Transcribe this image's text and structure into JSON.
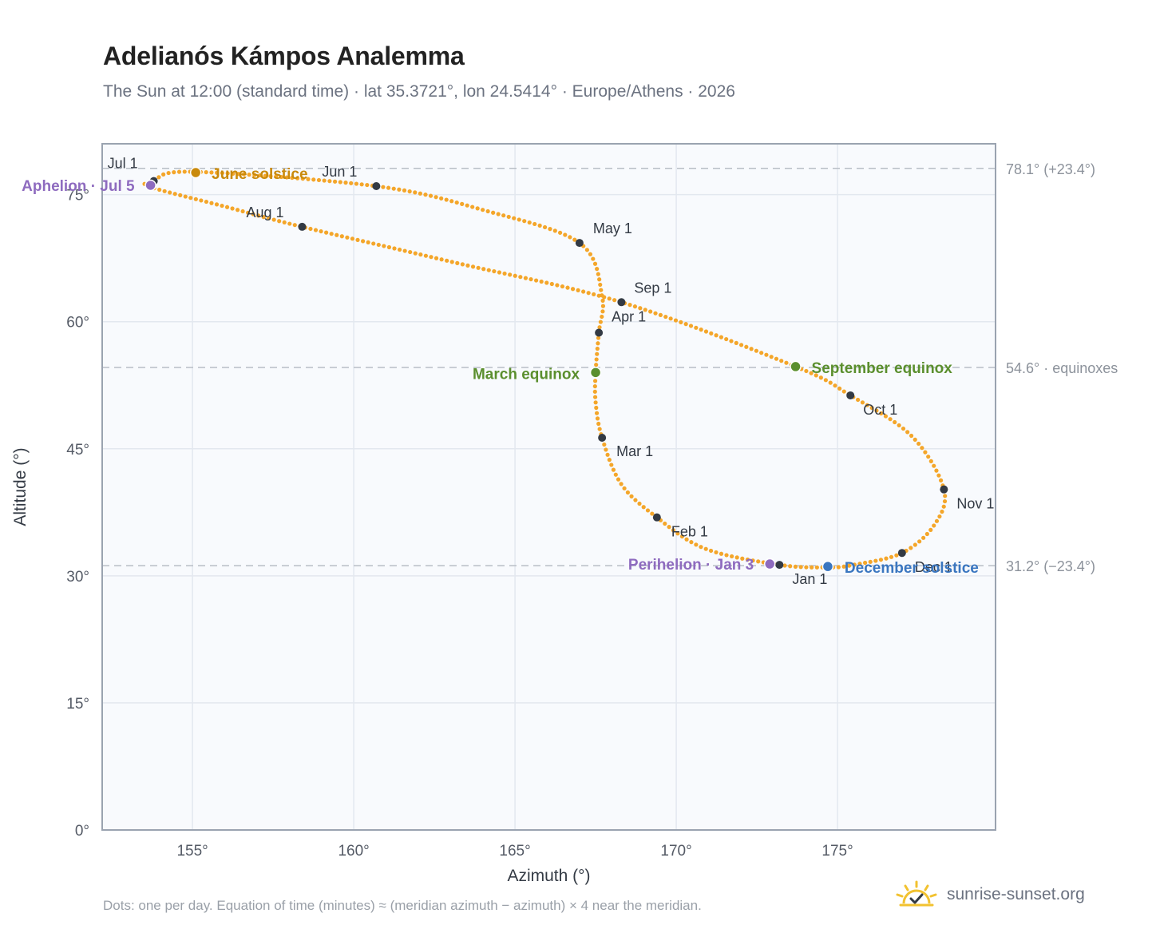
{
  "header": {
    "title": "Adelianós Kámpos Analemma",
    "subtitle": "The Sun at 12:00 (standard time) · lat 35.3721°, lon 24.5414° · Europe/Athens · 2026"
  },
  "footer": {
    "note": "Dots: one per day. Equation of time (minutes) ≈ (meridian azimuth − azimuth) × 4 near the meridian.",
    "brand": "sunrise-sunset.org",
    "brand_icon": "sun-check-icon"
  },
  "colors": {
    "curve": "#f4a62a",
    "month_marker": "#333a44",
    "june_solstice": "#c98a0c",
    "equinox": "#5b8f2e",
    "december_solstice": "#3a76c0",
    "perihelion_aphelion": "#8e6bbf",
    "plot_background": "#f8fafd",
    "reference_line": "#b8bec6"
  },
  "chart_data": {
    "type": "scatter",
    "xlabel": "Azimuth (°)",
    "ylabel": "Altitude (°)",
    "xlim": [
      152.2,
      179.9
    ],
    "ylim": [
      0,
      81
    ],
    "x_ticks": [
      155,
      160,
      165,
      170,
      175
    ],
    "x_tick_labels": [
      "155°",
      "160°",
      "165°",
      "170°",
      "175°"
    ],
    "y_ticks": [
      0,
      15,
      30,
      45,
      60,
      75
    ],
    "y_tick_labels": [
      "0°",
      "15°",
      "30°",
      "45°",
      "60°",
      "75°"
    ],
    "grid": true,
    "series": [
      {
        "daily_points": [
          {
            "x": 173.2,
            "y": 31.3
          },
          {
            "x": 170.9,
            "y": 33.2
          },
          {
            "x": 169.4,
            "y": 36.9
          },
          {
            "x": 168.3,
            "y": 40.8
          },
          {
            "x": 167.7,
            "y": 46.3
          },
          {
            "x": 167.5,
            "y": 50.5
          },
          {
            "x": 167.5,
            "y": 54.0
          },
          {
            "x": 167.6,
            "y": 58.7
          },
          {
            "x": 167.7,
            "y": 63.0
          },
          {
            "x": 167.0,
            "y": 69.3
          },
          {
            "x": 164.0,
            "y": 73.2
          },
          {
            "x": 160.7,
            "y": 76.0
          },
          {
            "x": 155.0,
            "y": 77.7
          },
          {
            "x": 153.8,
            "y": 76.6
          },
          {
            "x": 153.7,
            "y": 75.9
          },
          {
            "x": 156.0,
            "y": 73.6
          },
          {
            "x": 158.4,
            "y": 71.2
          },
          {
            "x": 163.0,
            "y": 67.1
          },
          {
            "x": 168.3,
            "y": 62.3
          },
          {
            "x": 173.7,
            "y": 54.7
          },
          {
            "x": 175.4,
            "y": 51.3
          },
          {
            "x": 177.3,
            "y": 46.5
          },
          {
            "x": 178.3,
            "y": 40.2
          },
          {
            "x": 178.0,
            "y": 36.0
          },
          {
            "x": 177.0,
            "y": 32.7
          },
          {
            "x": 175.5,
            "y": 31.3
          },
          {
            "x": 174.7,
            "y": 31.0
          },
          {
            "x": 173.2,
            "y": 31.3
          }
        ]
      }
    ],
    "month_markers": [
      {
        "label": "Jan 1",
        "x": 173.2,
        "y": 31.3
      },
      {
        "label": "Feb 1",
        "x": 169.4,
        "y": 36.9
      },
      {
        "label": "Mar 1",
        "x": 167.7,
        "y": 46.3
      },
      {
        "label": "Apr 1",
        "x": 167.6,
        "y": 58.7
      },
      {
        "label": "May 1",
        "x": 167.0,
        "y": 69.3
      },
      {
        "label": "Jun 1",
        "x": 160.7,
        "y": 76.0
      },
      {
        "label": "Jul 1",
        "x": 153.8,
        "y": 76.6
      },
      {
        "label": "Aug 1",
        "x": 158.4,
        "y": 71.2
      },
      {
        "label": "Sep 1",
        "x": 168.3,
        "y": 62.3
      },
      {
        "label": "Oct 1",
        "x": 175.4,
        "y": 51.3
      },
      {
        "label": "Nov 1",
        "x": 178.3,
        "y": 40.2
      },
      {
        "label": "Dec 1",
        "x": 177.0,
        "y": 32.7
      }
    ],
    "events": [
      {
        "label": "June solstice",
        "x": 155.1,
        "y": 77.6,
        "color_key": "june_solstice"
      },
      {
        "label": "Aphelion · Jul 5",
        "x": 153.7,
        "y": 76.1,
        "color_key": "perihelion_aphelion"
      },
      {
        "label": "March equinox",
        "x": 167.5,
        "y": 54.0,
        "color_key": "equinox"
      },
      {
        "label": "September equinox",
        "x": 173.7,
        "y": 54.7,
        "color_key": "equinox"
      },
      {
        "label": "Perihelion · Jan 3",
        "x": 172.9,
        "y": 31.4,
        "color_key": "perihelion_aphelion"
      },
      {
        "label": "December solstice",
        "x": 174.7,
        "y": 31.1,
        "color_key": "december_solstice"
      }
    ],
    "reference_lines": [
      {
        "y": 78.1,
        "label": "78.1° (+23.4°)"
      },
      {
        "y": 54.6,
        "label": "54.6° · equinoxes"
      },
      {
        "y": 31.2,
        "label": "31.2° (−23.4°)"
      }
    ]
  }
}
